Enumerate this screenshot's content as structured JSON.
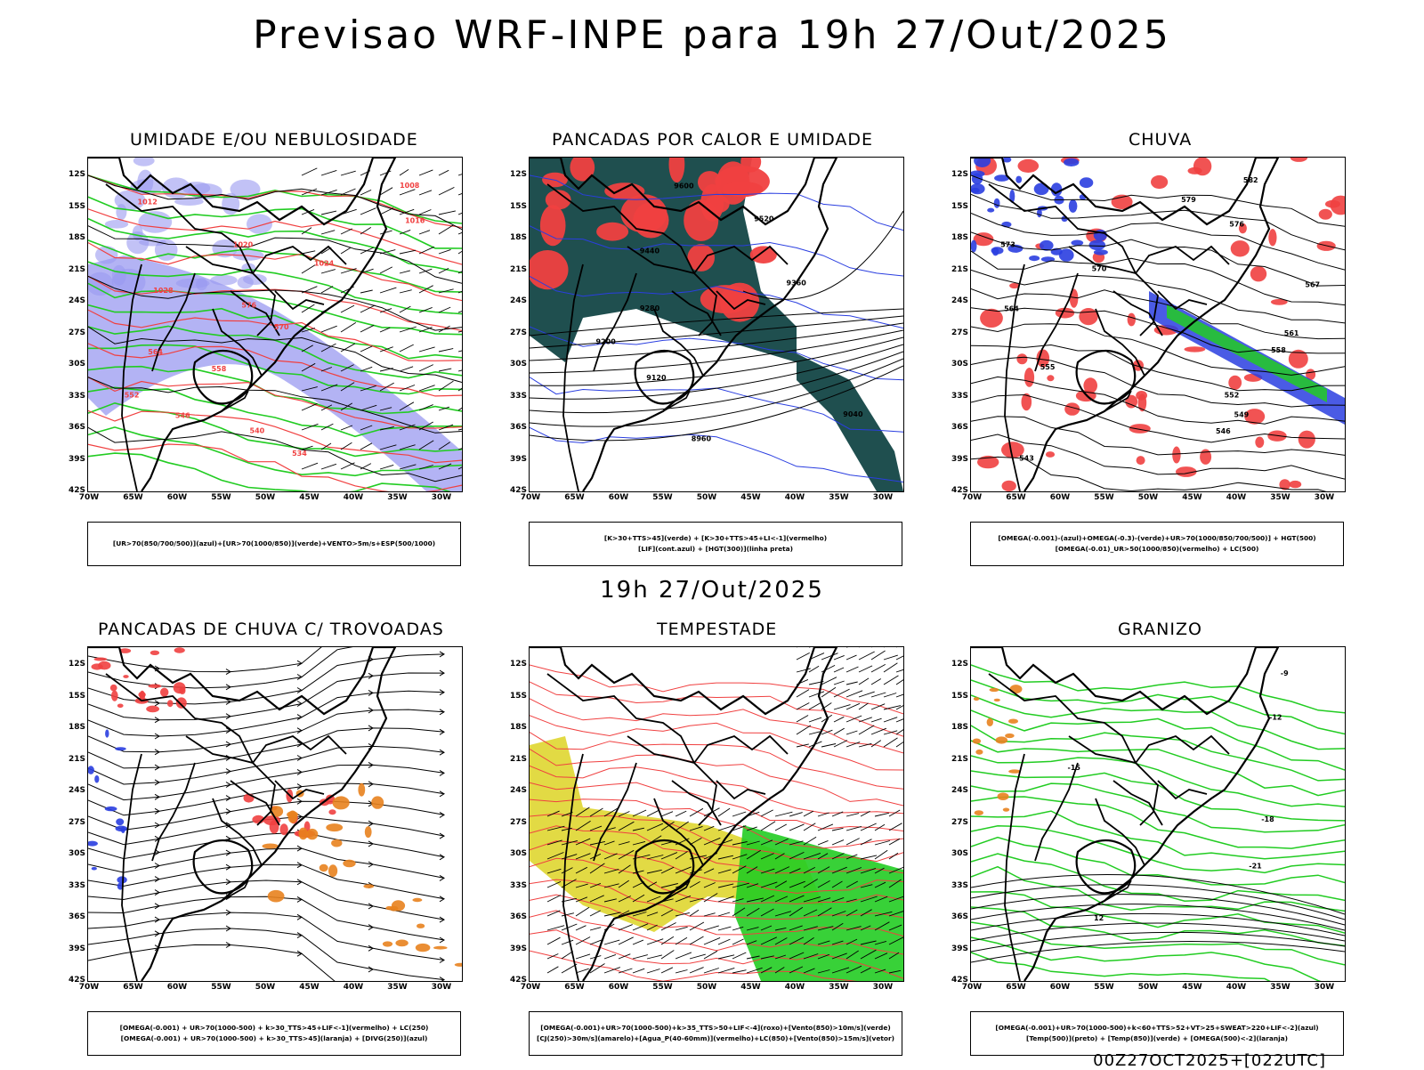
{
  "header": {
    "title": "Previsao WRF-INPE  para 19h 27/Out/2025"
  },
  "middle_time": "19h 27/Out/2025",
  "footer": "00Z27OCT2025+[022UTC]",
  "axes": {
    "lat_labels": [
      "12S",
      "15S",
      "18S",
      "21S",
      "24S",
      "27S",
      "30S",
      "33S",
      "36S",
      "39S",
      "42S"
    ],
    "lon_labels": [
      "70W",
      "65W",
      "60W",
      "55W",
      "50W",
      "45W",
      "40W",
      "35W",
      "30W"
    ]
  },
  "colors": {
    "blue": "#9a9af0",
    "blue_dark": "#2a3ee0",
    "green": "#22cc22",
    "red": "#f04040",
    "teal": "#1f4f4f",
    "orange": "#e8821e",
    "yellow": "#e0d83a",
    "black": "#000000"
  },
  "panels": [
    {
      "id": "umidade",
      "title": "UMIDADE E/OU NEBULOSIDADE",
      "legend": [
        "[UR>70(850/700/500)](azul)+[UR>70(1000/850)](verde)+VENTO>5m/s+ESP(500/1000)"
      ],
      "contour_labels": [
        "1008",
        "1012",
        "1016",
        "1020",
        "1024",
        "1028",
        "576",
        "570",
        "564",
        "558",
        "552",
        "546",
        "540",
        "534"
      ]
    },
    {
      "id": "pancadas-calor",
      "title": "PANCADAS POR CALOR E UMIDADE",
      "legend": [
        "[K>30+TTS>45](verde) + [K>30+TTS>45+LI<-1](vermelho)",
        "[LIF](cont.azul) + [HGT(300)](linha preta)"
      ],
      "contour_labels": [
        "9600",
        "9520",
        "9440",
        "9360",
        "9280",
        "9200",
        "9120",
        "9040",
        "8960"
      ]
    },
    {
      "id": "chuva",
      "title": "CHUVA",
      "legend": [
        "[OMEGA(-0.001)-(azul)+OMEGA(-0.3)-(verde)+UR>70(1000/850/700/500)] + HGT(500)",
        "[OMEGA(-0.01)_UR>50(1000/850)(vermelho) + LC(500)"
      ],
      "contour_labels": [
        "582",
        "579",
        "576",
        "573",
        "570",
        "567",
        "564",
        "561",
        "558",
        "555",
        "552",
        "549",
        "546",
        "543"
      ]
    },
    {
      "id": "pancadas-trovoadas",
      "title": "PANCADAS DE CHUVA C/ TROVOADAS",
      "legend": [
        "[OMEGA(-0.001) + UR>70(1000-500) + k>30_TTS>45+LIF<-1](vermelho) + LC(250)",
        "[OMEGA(-0.001) + UR>70(1000-500) + k>30_TTS>45](laranja) + [DIVG(250)](azul)"
      ],
      "contour_labels": []
    },
    {
      "id": "tempestade",
      "title": "TEMPESTADE",
      "legend": [
        "[OMEGA(-0.001)+UR>70(1000-500)+k>35_TTS>50+LIF<-4](roxo)+[Vento(850)>10m/s](verde)",
        "[CJ(250)>30m/s](amarelo)+[Agua_P(40-60mm)](vermelho)+LC(850)+[Vento(850)>15m/s](vetor)"
      ],
      "contour_labels": []
    },
    {
      "id": "granizo",
      "title": "GRANIZO",
      "legend": [
        "[OMEGA(-0.001)+UR>70(1000-500)+k<60+TTS>52+VT>25+SWEAT>220+LIF<-2](azul)",
        "[Temp(500)](preto) + [Temp(850)](verde) + [OMEGA(500)<-2](laranja)"
      ],
      "contour_labels": [
        "-9",
        "-12",
        "-15",
        "-18",
        "-21",
        "12"
      ]
    }
  ]
}
